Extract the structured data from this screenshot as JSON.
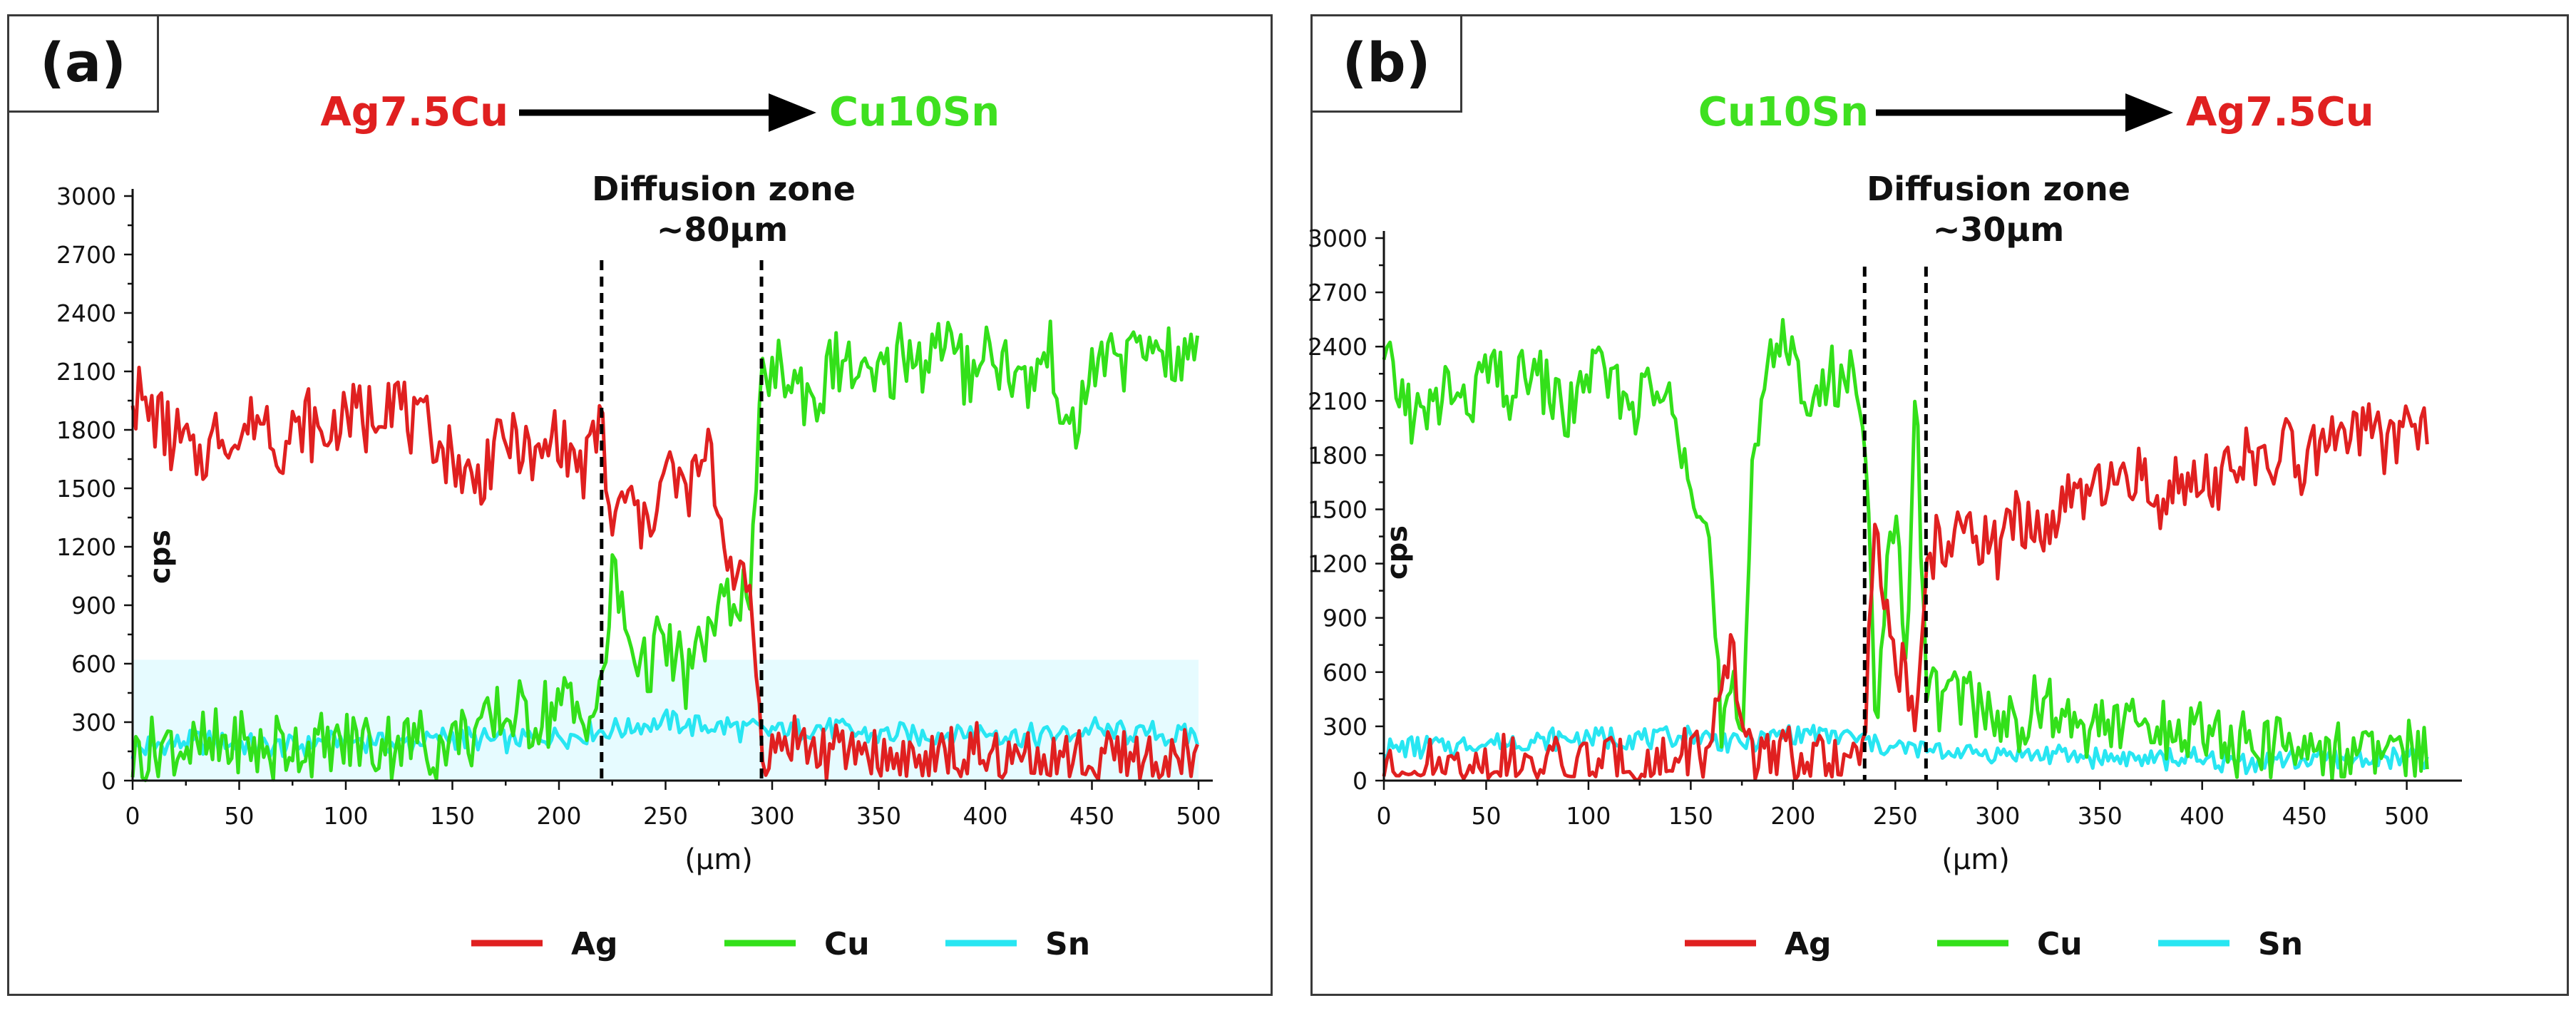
{
  "colors": {
    "Ag": "#e02020",
    "Cu": "#33e01a",
    "Cu_light": "#86ee4a",
    "Sn": "#28e6f2",
    "band": "#e6fbff"
  },
  "panels": [
    {
      "tag": "(a)",
      "title_left": "Ag7.5Cu",
      "title_right": "Cu10Sn",
      "title_left_color": "#e02020",
      "title_right_color": "#3fe020",
      "zone_label": "Diffusion zone",
      "zone_width_label": "~80μm"
    },
    {
      "tag": "(b)",
      "title_left": "Cu10Sn",
      "title_right": "Ag7.5Cu",
      "title_left_color": "#3fe020",
      "title_right_color": "#e02020",
      "zone_label": "Diffusion zone",
      "zone_width_label": "~30μm"
    }
  ],
  "chart_data": [
    {
      "type": "line",
      "xlabel": "(μm)",
      "ylabel": "cps",
      "xlim": [
        0,
        500
      ],
      "ylim": [
        0,
        3000
      ],
      "xticks": [
        0,
        50,
        100,
        150,
        200,
        250,
        300,
        350,
        400,
        450,
        500
      ],
      "yticks": [
        0,
        300,
        600,
        900,
        1200,
        1500,
        1800,
        2100,
        2400,
        2700,
        3000
      ],
      "diffusion_zone": [
        220,
        295
      ],
      "highlight_band": {
        "x": [
          0,
          500
        ],
        "y": [
          0,
          620
        ]
      },
      "legend": [
        "Ag",
        "Cu",
        "Sn"
      ],
      "legend_position": "bottom",
      "series": [
        {
          "name": "Ag",
          "x": [
            0,
            10,
            20,
            30,
            40,
            50,
            60,
            70,
            80,
            90,
            100,
            110,
            120,
            130,
            140,
            150,
            160,
            170,
            180,
            190,
            200,
            210,
            220,
            225,
            230,
            240,
            250,
            260,
            270,
            280,
            290,
            295,
            300,
            310,
            320,
            330,
            340,
            350,
            360,
            370,
            380,
            390,
            400,
            410,
            420,
            430,
            440,
            450,
            460,
            470,
            480,
            490,
            500
          ],
          "y": [
            2000,
            1850,
            1750,
            1650,
            1800,
            1750,
            1900,
            1700,
            1850,
            1750,
            1900,
            1850,
            2000,
            1850,
            1800,
            1650,
            1500,
            1700,
            1750,
            1600,
            1800,
            1550,
            1900,
            1200,
            1500,
            1300,
            1600,
            1450,
            1700,
            1100,
            950,
            200,
            150,
            220,
            150,
            120,
            180,
            100,
            120,
            90,
            110,
            80,
            100,
            90,
            120,
            80,
            100,
            70,
            110,
            90,
            80,
            100,
            110
          ]
        },
        {
          "name": "Cu",
          "x": [
            0,
            10,
            20,
            30,
            40,
            50,
            60,
            70,
            80,
            90,
            100,
            110,
            120,
            130,
            140,
            150,
            160,
            170,
            180,
            190,
            200,
            210,
            220,
            225,
            230,
            240,
            250,
            260,
            270,
            280,
            290,
            295,
            300,
            310,
            320,
            330,
            340,
            350,
            360,
            370,
            380,
            390,
            400,
            410,
            420,
            430,
            440,
            450,
            460,
            470,
            480,
            490,
            500
          ],
          "y": [
            150,
            120,
            180,
            140,
            160,
            200,
            150,
            180,
            170,
            160,
            200,
            180,
            220,
            180,
            200,
            220,
            250,
            300,
            350,
            300,
            400,
            350,
            420,
            1100,
            800,
            600,
            700,
            500,
            800,
            900,
            1000,
            2000,
            2100,
            2050,
            1950,
            2150,
            2100,
            2000,
            2200,
            2150,
            2250,
            2100,
            2200,
            2150,
            2000,
            2250,
            1700,
            2100,
            2200,
            2150,
            2300,
            2100,
            2250
          ]
        },
        {
          "name": "Sn",
          "x": [
            0,
            25,
            50,
            75,
            100,
            125,
            150,
            175,
            200,
            225,
            250,
            275,
            300,
            325,
            350,
            375,
            400,
            425,
            450,
            475,
            500
          ],
          "y": [
            160,
            200,
            180,
            170,
            210,
            190,
            220,
            200,
            230,
            260,
            300,
            280,
            250,
            270,
            240,
            230,
            250,
            220,
            260,
            240,
            230
          ]
        }
      ]
    },
    {
      "type": "line",
      "xlabel": "(μm)",
      "ylabel": "cps",
      "xlim": [
        0,
        520
      ],
      "ylim": [
        0,
        3000
      ],
      "xticks": [
        0,
        50,
        100,
        150,
        200,
        250,
        300,
        350,
        400,
        450,
        500
      ],
      "yticks": [
        0,
        300,
        600,
        900,
        1200,
        1500,
        1800,
        2100,
        2400,
        2700,
        3000
      ],
      "diffusion_zone": [
        235,
        265
      ],
      "legend": [
        "Ag",
        "Cu",
        "Sn"
      ],
      "legend_position": "bottom",
      "series": [
        {
          "name": "Ag",
          "x": [
            0,
            10,
            20,
            30,
            40,
            50,
            60,
            70,
            80,
            90,
            100,
            110,
            120,
            130,
            140,
            150,
            160,
            165,
            170,
            175,
            180,
            190,
            200,
            210,
            220,
            230,
            235,
            240,
            245,
            250,
            255,
            260,
            265,
            270,
            280,
            290,
            300,
            310,
            320,
            330,
            340,
            350,
            360,
            370,
            380,
            390,
            400,
            410,
            420,
            430,
            440,
            450,
            460,
            470,
            480,
            490,
            500,
            510
          ],
          "y": [
            60,
            40,
            70,
            50,
            80,
            60,
            90,
            50,
            70,
            60,
            80,
            70,
            90,
            60,
            110,
            150,
            200,
            400,
            800,
            300,
            150,
            100,
            120,
            80,
            100,
            120,
            180,
            1400,
            900,
            700,
            600,
            200,
            1100,
            1300,
            1350,
            1400,
            1300,
            1450,
            1350,
            1500,
            1600,
            1550,
            1650,
            1700,
            1500,
            1700,
            1750,
            1650,
            1800,
            1700,
            1850,
            1750,
            1900,
            1800,
            2000,
            1850,
            2000,
            1950
          ]
        },
        {
          "name": "Cu",
          "x": [
            0,
            10,
            20,
            30,
            40,
            50,
            60,
            70,
            80,
            90,
            100,
            110,
            120,
            130,
            140,
            150,
            160,
            165,
            170,
            175,
            180,
            190,
            200,
            210,
            220,
            230,
            235,
            240,
            245,
            250,
            255,
            260,
            265,
            270,
            280,
            290,
            300,
            310,
            320,
            330,
            340,
            350,
            360,
            370,
            380,
            390,
            400,
            410,
            420,
            430,
            440,
            450,
            460,
            470,
            480,
            490,
            500,
            510
          ],
          "y": [
            2300,
            2100,
            1950,
            2200,
            2050,
            2300,
            2100,
            2250,
            2150,
            2000,
            2300,
            2200,
            2100,
            2150,
            2050,
            1800,
            1200,
            200,
            500,
            150,
            1800,
            2450,
            2300,
            2100,
            2200,
            2250,
            2100,
            300,
            900,
            1600,
            600,
            2200,
            500,
            450,
            500,
            400,
            350,
            300,
            420,
            350,
            300,
            340,
            280,
            300,
            250,
            260,
            300,
            220,
            200,
            180,
            200,
            180,
            150,
            170,
            160,
            150,
            140,
            150
          ]
        },
        {
          "name": "Sn",
          "x": [
            0,
            25,
            50,
            75,
            100,
            125,
            150,
            175,
            200,
            225,
            250,
            275,
            300,
            325,
            350,
            375,
            400,
            425,
            450,
            475,
            500,
            510
          ],
          "y": [
            170,
            190,
            210,
            220,
            240,
            230,
            250,
            200,
            260,
            250,
            180,
            160,
            150,
            140,
            130,
            120,
            110,
            100,
            120,
            110,
            130,
            120
          ]
        }
      ]
    }
  ]
}
